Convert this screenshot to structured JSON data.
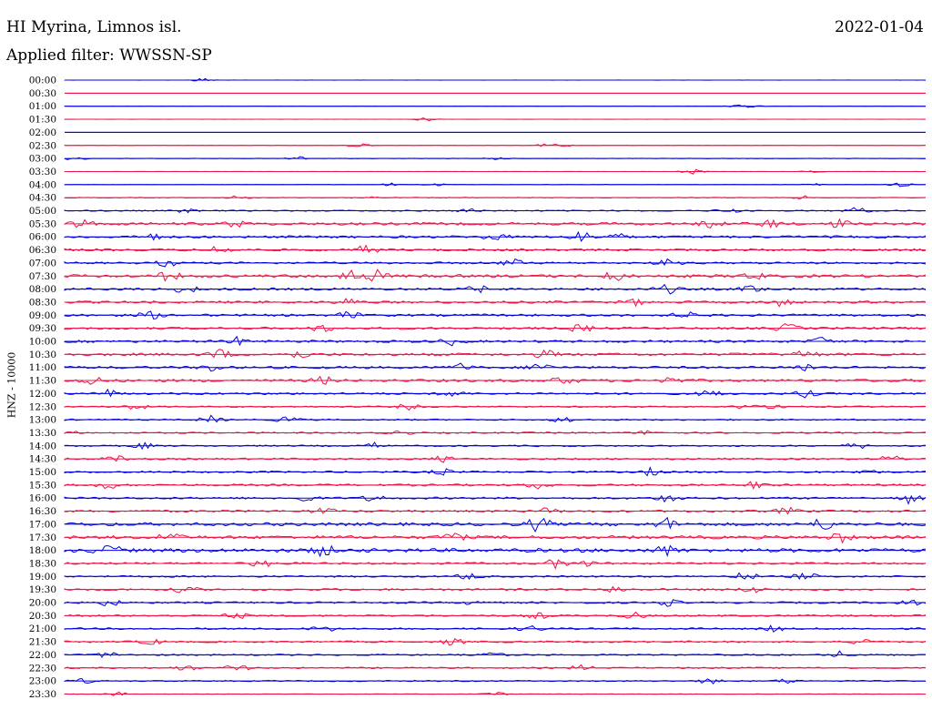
{
  "header": {
    "station": "HI Myrina, Limnos isl.",
    "date": "2022-01-04",
    "filter": "Applied filter: WWSSN-SP"
  },
  "chart_data": {
    "type": "line",
    "title": "HI Myrina, Limnos isl.",
    "subtitle": "Applied filter: WWSSN-SP",
    "ylabel": "HNZ - 10000",
    "row_interval_minutes": 30,
    "colors": {
      "even_row": "#0000dd",
      "odd_row": "#ee1144"
    },
    "rows": [
      {
        "time": "00:00",
        "level": 0.05,
        "events": [
          [
            0.16,
            0.5
          ]
        ]
      },
      {
        "time": "00:30",
        "level": 0.0,
        "events": []
      },
      {
        "time": "01:00",
        "level": 0.04,
        "events": [
          [
            0.78,
            0.3
          ],
          [
            0.8,
            0.25
          ]
        ]
      },
      {
        "time": "01:30",
        "level": 0.03,
        "events": [
          [
            0.42,
            0.5
          ]
        ]
      },
      {
        "time": "02:00",
        "level": 0.0,
        "events": []
      },
      {
        "time": "02:30",
        "level": 0.08,
        "events": [
          [
            0.34,
            0.7
          ],
          [
            0.56,
            0.4
          ],
          [
            0.58,
            0.3
          ]
        ]
      },
      {
        "time": "03:00",
        "level": 0.15,
        "events": [
          [
            0.01,
            0.5
          ],
          [
            0.27,
            0.6
          ],
          [
            0.5,
            0.3
          ]
        ]
      },
      {
        "time": "03:30",
        "level": 0.05,
        "events": [
          [
            0.73,
            0.6
          ],
          [
            0.87,
            0.3
          ]
        ]
      },
      {
        "time": "04:00",
        "level": 0.1,
        "events": [
          [
            0.38,
            0.4
          ],
          [
            0.43,
            0.35
          ],
          [
            0.87,
            0.4
          ],
          [
            0.97,
            0.5
          ]
        ]
      },
      {
        "time": "04:30",
        "level": 0.25,
        "events": [
          [
            0.2,
            0.5
          ],
          [
            0.35,
            0.4
          ],
          [
            0.86,
            0.4
          ]
        ]
      },
      {
        "time": "05:00",
        "level": 0.4,
        "events": [
          [
            0.14,
            0.5
          ],
          [
            0.47,
            0.5
          ],
          [
            0.77,
            0.6
          ],
          [
            0.92,
            0.8
          ]
        ]
      },
      {
        "time": "05:30",
        "level": 0.9,
        "events": [
          [
            0.02,
            1.0
          ],
          [
            0.2,
            0.8
          ],
          [
            0.75,
            0.9
          ],
          [
            0.82,
            1.0
          ],
          [
            0.9,
            1.0
          ]
        ]
      },
      {
        "time": "06:00",
        "level": 0.8,
        "events": [
          [
            0.1,
            0.9
          ],
          [
            0.5,
            0.9
          ],
          [
            0.6,
            1.4
          ],
          [
            0.64,
            0.8
          ]
        ]
      },
      {
        "time": "06:30",
        "level": 0.8,
        "events": [
          [
            0.18,
            1.0
          ],
          [
            0.35,
            1.0
          ]
        ]
      },
      {
        "time": "07:00",
        "level": 0.7,
        "events": [
          [
            0.12,
            0.8
          ],
          [
            0.52,
            0.9
          ],
          [
            0.7,
            0.8
          ]
        ]
      },
      {
        "time": "07:30",
        "level": 1.0,
        "events": [
          [
            0.12,
            1.0
          ],
          [
            0.33,
            1.4
          ],
          [
            0.36,
            1.6
          ],
          [
            0.64,
            1.2
          ],
          [
            0.8,
            0.9
          ]
        ]
      },
      {
        "time": "08:00",
        "level": 0.8,
        "events": [
          [
            0.14,
            0.9
          ],
          [
            0.48,
            0.8
          ],
          [
            0.7,
            1.1
          ],
          [
            0.8,
            0.9
          ]
        ]
      },
      {
        "time": "08:30",
        "level": 0.8,
        "events": [
          [
            0.33,
            0.9
          ],
          [
            0.66,
            0.8
          ],
          [
            0.83,
            0.9
          ]
        ]
      },
      {
        "time": "09:00",
        "level": 0.8,
        "events": [
          [
            0.1,
            0.9
          ],
          [
            0.33,
            0.8
          ],
          [
            0.72,
            0.8
          ]
        ]
      },
      {
        "time": "09:30",
        "level": 0.8,
        "events": [
          [
            0.3,
            0.8
          ],
          [
            0.6,
            0.9
          ],
          [
            0.84,
            1.0
          ]
        ]
      },
      {
        "time": "10:00",
        "level": 0.8,
        "events": [
          [
            0.2,
            0.9
          ],
          [
            0.45,
            0.8
          ],
          [
            0.88,
            1.0
          ]
        ]
      },
      {
        "time": "10:30",
        "level": 0.9,
        "events": [
          [
            0.18,
            1.1
          ],
          [
            0.27,
            1.0
          ],
          [
            0.56,
            0.9
          ],
          [
            0.86,
            1.0
          ]
        ]
      },
      {
        "time": "11:00",
        "level": 0.8,
        "events": [
          [
            0.17,
            0.9
          ],
          [
            0.46,
            0.9
          ],
          [
            0.55,
            1.1
          ],
          [
            0.86,
            0.9
          ]
        ]
      },
      {
        "time": "11:30",
        "level": 0.9,
        "events": [
          [
            0.03,
            1.0
          ],
          [
            0.3,
            0.9
          ],
          [
            0.58,
            0.9
          ],
          [
            0.7,
            0.8
          ]
        ]
      },
      {
        "time": "12:00",
        "level": 0.7,
        "events": [
          [
            0.05,
            0.9
          ],
          [
            0.45,
            0.8
          ],
          [
            0.75,
            0.8
          ],
          [
            0.86,
            0.8
          ]
        ]
      },
      {
        "time": "12:30",
        "level": 0.5,
        "events": [
          [
            0.08,
            0.8
          ],
          [
            0.4,
            0.7
          ],
          [
            0.79,
            0.6
          ],
          [
            0.83,
            0.8
          ]
        ]
      },
      {
        "time": "13:00",
        "level": 0.5,
        "events": [
          [
            0.17,
            0.9
          ],
          [
            0.26,
            0.8
          ],
          [
            0.58,
            0.7
          ]
        ]
      },
      {
        "time": "13:30",
        "level": 0.5,
        "events": [
          [
            0.0,
            0.9
          ],
          [
            0.39,
            0.6
          ],
          [
            0.68,
            0.6
          ]
        ]
      },
      {
        "time": "14:00",
        "level": 0.5,
        "events": [
          [
            0.09,
            0.8
          ],
          [
            0.36,
            0.7
          ],
          [
            0.92,
            0.7
          ]
        ]
      },
      {
        "time": "14:30",
        "level": 0.6,
        "events": [
          [
            0.06,
            0.7
          ],
          [
            0.44,
            0.7
          ],
          [
            0.96,
            0.8
          ]
        ]
      },
      {
        "time": "15:00",
        "level": 0.6,
        "events": [
          [
            0.44,
            0.8
          ],
          [
            0.68,
            0.9
          ],
          [
            0.93,
            0.8
          ]
        ]
      },
      {
        "time": "15:30",
        "level": 0.7,
        "events": [
          [
            0.05,
            0.9
          ],
          [
            0.55,
            0.8
          ],
          [
            0.8,
            0.9
          ]
        ]
      },
      {
        "time": "16:00",
        "level": 0.7,
        "events": [
          [
            0.28,
            0.9
          ],
          [
            0.36,
            0.8
          ],
          [
            0.7,
            0.9
          ],
          [
            0.98,
            1.2
          ]
        ]
      },
      {
        "time": "16:30",
        "level": 0.7,
        "events": [
          [
            0.3,
            0.8
          ],
          [
            0.56,
            0.8
          ],
          [
            0.84,
            0.8
          ]
        ]
      },
      {
        "time": "17:00",
        "level": 1.1,
        "events": [
          [
            0.55,
            1.7
          ],
          [
            0.7,
            1.3
          ],
          [
            0.88,
            1.4
          ]
        ]
      },
      {
        "time": "17:30",
        "level": 1.1,
        "events": [
          [
            0.12,
            1.2
          ],
          [
            0.45,
            1.1
          ],
          [
            0.9,
            1.2
          ]
        ]
      },
      {
        "time": "18:00",
        "level": 1.3,
        "events": [
          [
            0.05,
            1.4
          ],
          [
            0.3,
            1.2
          ],
          [
            0.7,
            1.1
          ]
        ]
      },
      {
        "time": "18:30",
        "level": 0.7,
        "events": [
          [
            0.23,
            0.9
          ],
          [
            0.57,
            1.0
          ],
          [
            0.6,
            0.8
          ]
        ]
      },
      {
        "time": "19:00",
        "level": 0.6,
        "events": [
          [
            0.47,
            0.8
          ],
          [
            0.79,
            1.1
          ],
          [
            0.86,
            0.9
          ]
        ]
      },
      {
        "time": "19:30",
        "level": 0.7,
        "events": [
          [
            0.14,
            0.8
          ],
          [
            0.64,
            0.9
          ],
          [
            0.8,
            0.8
          ]
        ]
      },
      {
        "time": "20:00",
        "level": 0.6,
        "events": [
          [
            0.05,
            0.9
          ],
          [
            0.48,
            0.8
          ],
          [
            0.7,
            0.8
          ],
          [
            0.98,
            0.8
          ]
        ]
      },
      {
        "time": "20:30",
        "level": 0.6,
        "events": [
          [
            0.2,
            0.7
          ],
          [
            0.55,
            0.7
          ],
          [
            0.66,
            0.8
          ]
        ]
      },
      {
        "time": "21:00",
        "level": 0.6,
        "events": [
          [
            0.3,
            0.8
          ],
          [
            0.54,
            0.8
          ],
          [
            0.82,
            0.7
          ]
        ]
      },
      {
        "time": "21:30",
        "level": 0.6,
        "events": [
          [
            0.1,
            0.7
          ],
          [
            0.45,
            0.8
          ],
          [
            0.93,
            0.9
          ]
        ]
      },
      {
        "time": "22:00",
        "level": 0.5,
        "events": [
          [
            0.05,
            0.7
          ],
          [
            0.5,
            0.6
          ],
          [
            0.9,
            0.8
          ]
        ]
      },
      {
        "time": "22:30",
        "level": 0.5,
        "events": [
          [
            0.14,
            0.7
          ],
          [
            0.2,
            0.9
          ],
          [
            0.6,
            0.6
          ]
        ]
      },
      {
        "time": "23:00",
        "level": 0.4,
        "events": [
          [
            0.02,
            0.6
          ],
          [
            0.75,
            0.7
          ],
          [
            0.84,
            0.6
          ]
        ]
      },
      {
        "time": "23:30",
        "level": 0.15,
        "events": [
          [
            0.06,
            0.6
          ],
          [
            0.5,
            0.5
          ]
        ]
      }
    ]
  }
}
